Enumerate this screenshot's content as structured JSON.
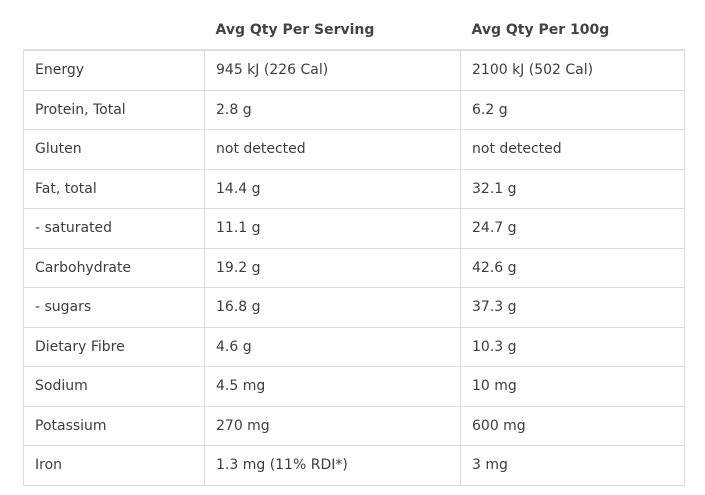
{
  "table": {
    "headers": [
      "",
      "Avg Qty Per Serving",
      "Avg Qty Per 100g"
    ],
    "rows": [
      [
        "Energy",
        "945 kJ (226 Cal)",
        "2100 kJ (502 Cal)"
      ],
      [
        "Protein, Total",
        "2.8 g",
        "6.2 g"
      ],
      [
        "Gluten",
        "not detected",
        "not detected"
      ],
      [
        "Fat, total",
        "14.4 g",
        "32.1 g"
      ],
      [
        "- saturated",
        "11.1 g",
        "24.7 g"
      ],
      [
        "Carbohydrate",
        "19.2 g",
        "42.6 g"
      ],
      [
        "- sugars",
        "16.8 g",
        "37.3 g"
      ],
      [
        "Dietary Fibre",
        "4.6 g",
        "10.3 g"
      ],
      [
        "Sodium",
        "4.5 mg",
        "10 mg"
      ],
      [
        "Potassium",
        "270 mg",
        "600 mg"
      ],
      [
        "Iron",
        "1.3 mg (11% RDI*)",
        "3 mg"
      ]
    ]
  }
}
